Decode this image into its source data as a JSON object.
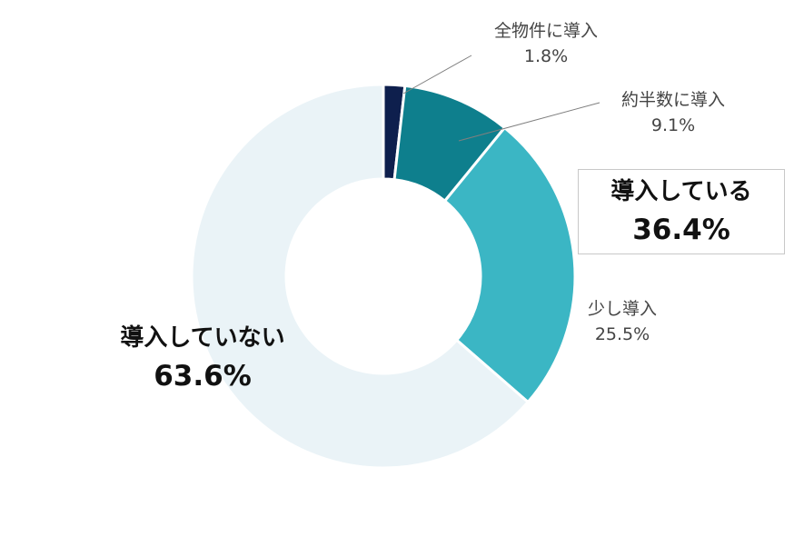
{
  "chart_data": {
    "type": "donut",
    "unit": "%",
    "slices": [
      {
        "label": "全物件に導入",
        "value": 1.8,
        "value_text": "1.8%",
        "color": "#0e1f4d"
      },
      {
        "label": "約半数に導入",
        "value": 9.1,
        "value_text": "9.1%",
        "color": "#0e7f8d"
      },
      {
        "label": "少し導入",
        "value": 25.5,
        "value_text": "25.5%",
        "color": "#3bb6c4"
      },
      {
        "label": "導入していない",
        "value": 63.6,
        "value_text": "63.6%",
        "color": "#eaf3f7"
      }
    ],
    "groups": {
      "in_use": {
        "label": "導入している",
        "value": 36.4,
        "value_text": "36.4%"
      },
      "not_in_use": {
        "label": "導入していない",
        "value": 63.6,
        "value_text": "63.6%"
      }
    },
    "leader_line_color": "#7f7f7f"
  }
}
